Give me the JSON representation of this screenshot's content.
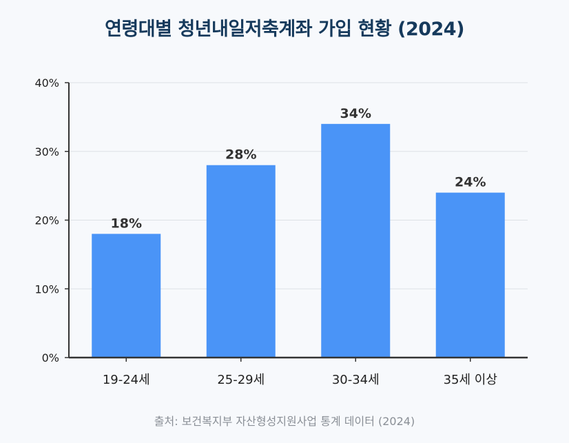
{
  "chart_data": {
    "type": "bar",
    "title": "연령대별 청년내일저축계좌 가입 현황 (2024)",
    "categories": [
      "19-24세",
      "25-29세",
      "30-34세",
      "35세 이상"
    ],
    "values": [
      18,
      28,
      34,
      24
    ],
    "data_labels": [
      "18%",
      "28%",
      "34%",
      "24%"
    ],
    "ylim": [
      0,
      40
    ],
    "yticks": [
      0,
      10,
      20,
      30,
      40
    ],
    "ytick_labels": [
      "0%",
      "10%",
      "20%",
      "30%",
      "40%"
    ],
    "xlabel": "",
    "ylabel": "",
    "grid": true,
    "bar_color": "#4a94f7",
    "source": "출처: 보건복지부 자산형성지원사업 통계 데이터 (2024)"
  }
}
